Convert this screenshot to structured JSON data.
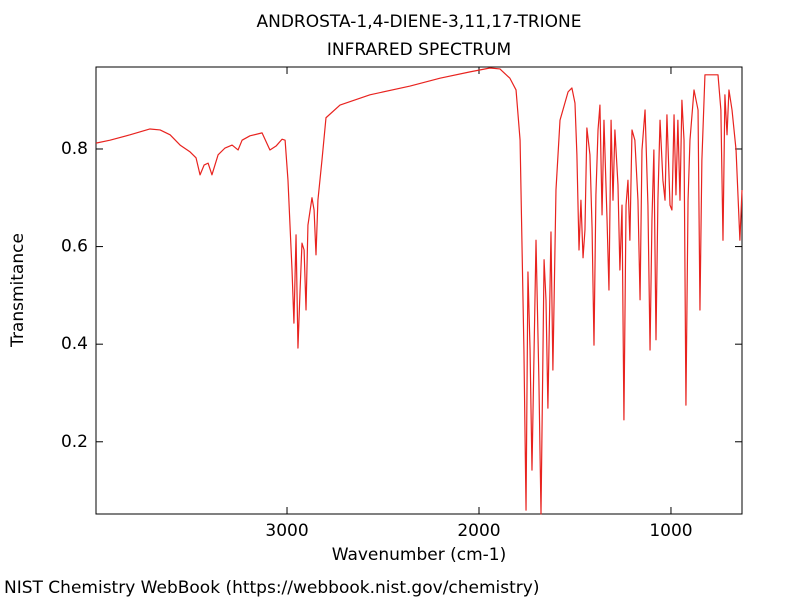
{
  "chart_data": {
    "type": "line",
    "title": "ANDROSTA-1,4-DIENE-3,11,17-TRIONE",
    "subtitle": "INFRARED SPECTRUM",
    "xlabel": "Wavenumber (cm-1)",
    "ylabel": "Transmitance",
    "source": "NIST Chemistry WebBook (https://webbook.nist.gov/chemistry)",
    "xlim": [
      3995,
      630
    ],
    "ylim": [
      0.052,
      0.968
    ],
    "xticks": [
      3000,
      2000,
      1000
    ],
    "yticks": [
      0.2,
      0.4,
      0.6,
      0.8
    ],
    "grid": false,
    "x": [
      3995,
      3922,
      3818,
      3714,
      3661,
      3609,
      3557,
      3505,
      3474,
      3453,
      3432,
      3411,
      3391,
      3359,
      3323,
      3286,
      3255,
      3234,
      3193,
      3130,
      3089,
      3057,
      3026,
      3010,
      2995,
      2974,
      2964,
      2953,
      2943,
      2932,
      2922,
      2911,
      2901,
      2891,
      2870,
      2859,
      2849,
      2839,
      2818,
      2797,
      2724,
      2568,
      2359,
      2203,
      2047,
      1943,
      1891,
      1839,
      1807,
      1786,
      1766,
      1755,
      1745,
      1734,
      1724,
      1703,
      1688,
      1677,
      1661,
      1651,
      1641,
      1625,
      1615,
      1599,
      1578,
      1536,
      1516,
      1500,
      1490,
      1479,
      1469,
      1458,
      1448,
      1438,
      1422,
      1411,
      1401,
      1391,
      1380,
      1370,
      1359,
      1349,
      1333,
      1323,
      1312,
      1302,
      1292,
      1276,
      1266,
      1255,
      1245,
      1234,
      1224,
      1214,
      1203,
      1188,
      1172,
      1161,
      1151,
      1135,
      1120,
      1109,
      1099,
      1089,
      1078,
      1068,
      1057,
      1042,
      1031,
      1021,
      1005,
      995,
      984,
      974,
      964,
      953,
      943,
      932,
      922,
      911,
      901,
      880,
      859,
      849,
      839,
      823,
      786,
      755,
      740,
      729,
      719,
      708,
      698,
      682,
      661,
      641,
      630
    ],
    "series": [
      {
        "name": "Transmitance",
        "color": "#e8231f",
        "values": [
          0.812,
          0.818,
          0.829,
          0.841,
          0.839,
          0.829,
          0.808,
          0.794,
          0.782,
          0.747,
          0.767,
          0.771,
          0.747,
          0.788,
          0.802,
          0.808,
          0.798,
          0.818,
          0.827,
          0.833,
          0.798,
          0.806,
          0.82,
          0.818,
          0.736,
          0.552,
          0.443,
          0.624,
          0.392,
          0.511,
          0.607,
          0.593,
          0.47,
          0.644,
          0.7,
          0.675,
          0.583,
          0.695,
          0.777,
          0.864,
          0.89,
          0.911,
          0.929,
          0.945,
          0.958,
          0.966,
          0.964,
          0.945,
          0.921,
          0.818,
          0.388,
          0.06,
          0.548,
          0.388,
          0.142,
          0.613,
          0.327,
          0.052,
          0.573,
          0.491,
          0.269,
          0.63,
          0.347,
          0.716,
          0.859,
          0.917,
          0.925,
          0.894,
          0.788,
          0.593,
          0.695,
          0.577,
          0.634,
          0.843,
          0.788,
          0.638,
          0.398,
          0.706,
          0.839,
          0.89,
          0.665,
          0.859,
          0.655,
          0.511,
          0.859,
          0.695,
          0.839,
          0.726,
          0.552,
          0.685,
          0.245,
          0.685,
          0.736,
          0.613,
          0.839,
          0.818,
          0.695,
          0.491,
          0.798,
          0.88,
          0.685,
          0.388,
          0.655,
          0.798,
          0.409,
          0.695,
          0.859,
          0.736,
          0.695,
          0.87,
          0.685,
          0.675,
          0.87,
          0.706,
          0.859,
          0.695,
          0.9,
          0.818,
          0.275,
          0.695,
          0.818,
          0.921,
          0.88,
          0.47,
          0.777,
          0.952,
          0.952,
          0.952,
          0.88,
          0.613,
          0.911,
          0.829,
          0.921,
          0.88,
          0.798,
          0.613,
          0.716
        ]
      }
    ]
  }
}
